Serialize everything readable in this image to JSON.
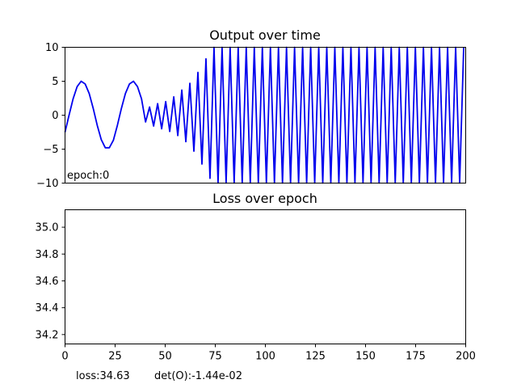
{
  "chart_data": [
    {
      "type": "line",
      "title": "Output over time",
      "xlabel": "",
      "ylabel": "",
      "xlim": [
        0,
        199
      ],
      "ylim": [
        -10,
        10
      ],
      "y_ticks": [
        10,
        5,
        0,
        -5,
        -10
      ],
      "y_tick_labels": [
        "10",
        "5",
        "0",
        "−5",
        "−10"
      ],
      "x_ticks_visible": false,
      "grid": false,
      "annotation": "epoch:0",
      "series": [
        {
          "color": "#0000ee",
          "points": [
            [
              0,
              -2.5
            ],
            [
              2,
              0.0
            ],
            [
              4,
              2.4
            ],
            [
              6,
              4.2
            ],
            [
              8,
              5.0
            ],
            [
              10,
              4.6
            ],
            [
              12,
              3.2
            ],
            [
              14,
              1.0
            ],
            [
              16,
              -1.5
            ],
            [
              18,
              -3.6
            ],
            [
              20,
              -4.8
            ],
            [
              22,
              -4.8
            ],
            [
              24,
              -3.7
            ],
            [
              26,
              -1.5
            ],
            [
              28,
              1.0
            ],
            [
              30,
              3.2
            ],
            [
              32,
              4.6
            ],
            [
              34,
              5.0
            ],
            [
              36,
              4.2
            ],
            [
              38,
              2.4
            ],
            [
              40,
              -1.0
            ],
            [
              42,
              1.2
            ],
            [
              44,
              -1.6
            ],
            [
              46,
              1.7
            ],
            [
              48,
              -2.0
            ],
            [
              50,
              2.0
            ],
            [
              52,
              -2.4
            ],
            [
              54,
              2.7
            ],
            [
              56,
              -3.0
            ],
            [
              58,
              3.7
            ],
            [
              60,
              -3.9
            ],
            [
              62,
              4.7
            ],
            [
              64,
              -5.3
            ],
            [
              66,
              6.3
            ],
            [
              68,
              -7.2
            ],
            [
              70,
              8.3
            ],
            [
              72,
              -9.3
            ],
            [
              74,
              10
            ],
            [
              76,
              -10
            ],
            [
              78,
              10
            ],
            [
              80,
              -10
            ]
          ],
          "continues_as_saturated_oscillation_to": 199,
          "oscillation_period": 4
        }
      ]
    },
    {
      "type": "line",
      "title": "Loss over epoch",
      "xlabel": "",
      "ylabel": "",
      "xlim": [
        0,
        200
      ],
      "ylim": [
        34.13,
        35.13
      ],
      "x_ticks": [
        0,
        25,
        50,
        75,
        100,
        125,
        150,
        175,
        200
      ],
      "x_tick_labels": [
        "0",
        "25",
        "50",
        "75",
        "100",
        "125",
        "150",
        "175",
        "200"
      ],
      "y_ticks": [
        35.0,
        34.8,
        34.6,
        34.4,
        34.2
      ],
      "y_tick_labels": [
        "35.0",
        "34.8",
        "34.6",
        "34.4",
        "34.2"
      ],
      "grid": false,
      "series": []
    }
  ],
  "footer": {
    "loss": "loss:34.63",
    "det": "det(O):-1.44e-02"
  }
}
